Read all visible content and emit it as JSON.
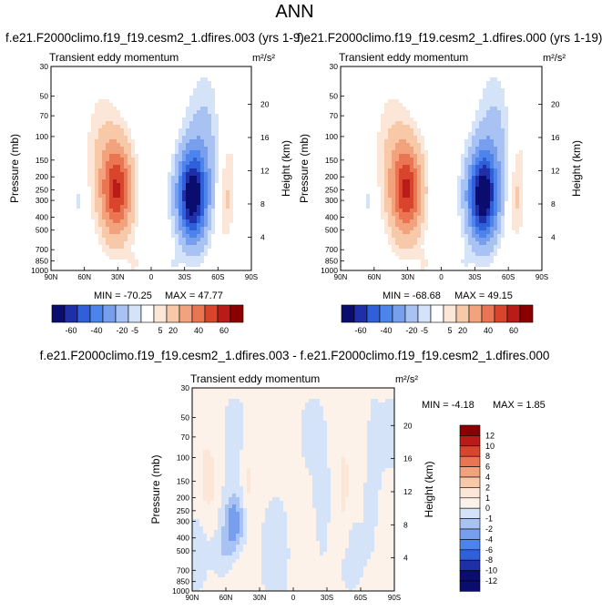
{
  "page_title": "ANN",
  "chart_data": [
    {
      "type": "heatmap",
      "title": "f.e21.F2000climo.f19_f19.cesm2_1.dfires.003 (yrs 1-9)",
      "subtitle": "Transient eddy momentum",
      "units_label": "m²/s²",
      "xlabel": "",
      "ylabel": "Pressure (mb)",
      "y2label": "Height (km)",
      "x_ticks": [
        "90N",
        "60N",
        "30N",
        "0",
        "30S",
        "60S",
        "90S"
      ],
      "y_ticks": [
        30,
        50,
        70,
        100,
        150,
        200,
        250,
        300,
        400,
        500,
        700,
        850,
        1000
      ],
      "y_scale": "log",
      "ylim": [
        30,
        1000
      ],
      "y2_ticks": [
        20,
        16,
        12,
        8,
        4
      ],
      "min_label": "MIN = -70.25",
      "max_label": "MAX = 47.77",
      "colorbar_labels": [
        "-60",
        "-40",
        "-20",
        "-5",
        "5",
        "20",
        "40",
        "60"
      ],
      "features": [
        {
          "lat": 31,
          "p": 250,
          "value": 47.77
        },
        {
          "lat": -37,
          "p": 280,
          "value": -70.25
        },
        {
          "lat": -67,
          "p": 300,
          "value": 10
        },
        {
          "lat": 65,
          "p": 300,
          "value": -5
        }
      ]
    },
    {
      "type": "heatmap",
      "title": "f.e21.F2000climo.f19_f19.cesm2_1.dfires.000 (yrs 1-19)",
      "subtitle": "Transient eddy momentum",
      "units_label": "m²/s²",
      "xlabel": "",
      "ylabel": "Pressure (mb)",
      "y2label": "Height (km)",
      "x_ticks": [
        "90N",
        "60N",
        "30N",
        "0",
        "30S",
        "60S",
        "90S"
      ],
      "y_ticks": [
        30,
        50,
        70,
        100,
        150,
        200,
        250,
        300,
        400,
        500,
        700,
        850,
        1000
      ],
      "y_scale": "log",
      "ylim": [
        30,
        1000
      ],
      "y2_ticks": [
        20,
        16,
        12,
        8,
        4
      ],
      "min_label": "MIN = -68.68",
      "max_label": "MAX = 49.15",
      "colorbar_labels": [
        "-60",
        "-40",
        "-20",
        "-5",
        "5",
        "20",
        "40",
        "60"
      ],
      "features": [
        {
          "lat": 31,
          "p": 250,
          "value": 49.15
        },
        {
          "lat": -37,
          "p": 280,
          "value": -68.68
        },
        {
          "lat": -67,
          "p": 300,
          "value": 10
        },
        {
          "lat": 65,
          "p": 300,
          "value": -5
        }
      ]
    },
    {
      "type": "heatmap",
      "title": "f.e21.F2000climo.f19_f19.cesm2_1.dfires.003 - f.e21.F2000climo.f19_f19.cesm2_1.dfires.000",
      "subtitle": "Transient eddy momentum",
      "units_label": "m²/s²",
      "xlabel": "",
      "ylabel": "Pressure (mb)",
      "y2label": "Height (km)",
      "x_ticks": [
        "90N",
        "60N",
        "30N",
        "0",
        "30S",
        "60S",
        "90S"
      ],
      "y_ticks": [
        30,
        50,
        70,
        100,
        150,
        200,
        250,
        300,
        400,
        500,
        700,
        850,
        1000
      ],
      "y_scale": "log",
      "ylim": [
        30,
        1000
      ],
      "y2_ticks": [
        20,
        16,
        12,
        8,
        4
      ],
      "min_label": "MIN = -4.18",
      "max_label": "MAX =  1.85",
      "colorbar_labels": [
        "12",
        "10",
        "8",
        "6",
        "4",
        "2",
        "1",
        "0",
        "-1",
        "-2",
        "-4",
        "-6",
        "-8",
        "-10",
        "-12"
      ],
      "features": [
        {
          "lat": 53,
          "p": 310,
          "value": -4.18
        },
        {
          "lat": 75,
          "p": 150,
          "value": 1.85
        },
        {
          "lat": -25,
          "p": 250,
          "value": -1.5
        }
      ]
    }
  ],
  "colors": {
    "main_scale": [
      "#0b0d6e",
      "#1f2fa8",
      "#2f5fd9",
      "#4c84ec",
      "#779fee",
      "#a8c3f3",
      "#d4e3f8",
      "#ffffff",
      "#fbe6d8",
      "#f7c9a9",
      "#f2a27c",
      "#ea7553",
      "#d9452c",
      "#b91c18",
      "#8a0000"
    ],
    "diff_scale": [
      "#8a0000",
      "#b91c18",
      "#d9452c",
      "#ea7553",
      "#f2a27c",
      "#f7c9a9",
      "#fbe6d8",
      "#fdf2ea",
      "#d4e3f8",
      "#a8c3f3",
      "#779fee",
      "#4c84ec",
      "#2f5fd9",
      "#1f2fa8",
      "#0b0d6e"
    ]
  }
}
